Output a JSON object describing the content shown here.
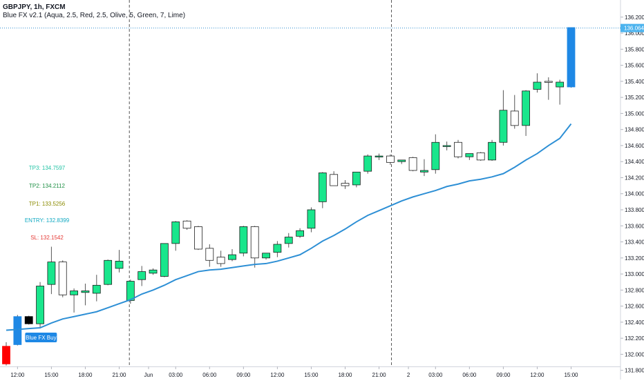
{
  "header": {
    "symbol_line": "GBPJPY, 1h, FXCM",
    "indicator_line": "Blue FX v2.1 (Aqua, 2.5, Red, 2.5, Olive, 5, Green, 7, Lime)"
  },
  "labels": {
    "tp3": "TP3: 134.7597",
    "tp2": "TP2: 134.2112",
    "tp1": "TP1: 133.5256",
    "entry": "ENTRY: 132.8399",
    "sl": "SL: 132.1542",
    "buy_signal": "Blue FX Buy"
  },
  "colors": {
    "bull": "#19e68c",
    "bear": "#ffffff",
    "outline": "#1e1e1e",
    "wick": "#555555",
    "signal_blue": "#1e88e5",
    "signal_red": "#ff0000",
    "signal_black": "#000000",
    "tp3": "#22c3a5",
    "tp2": "#1e8f44",
    "tp1": "#8a8a00",
    "entry": "#11a9c2",
    "sl": "#e53935",
    "price_line": "#2e8fcf",
    "price_tag": "#4cb3ee"
  },
  "chart_data": {
    "type": "candlestick",
    "symbol": "GBPJPY",
    "timeframe": "1h",
    "source": "FXCM",
    "ylim": [
      131.84,
      136.31
    ],
    "yticks": [
      "131.800",
      "132.000",
      "132.200",
      "132.400",
      "132.600",
      "132.800",
      "133.000",
      "133.200",
      "133.400",
      "133.600",
      "133.800",
      "134.000",
      "134.200",
      "134.400",
      "134.600",
      "134.800",
      "135.000",
      "135.200",
      "135.400",
      "135.600",
      "135.800",
      "136.000",
      "136.200"
    ],
    "xticks": [
      {
        "label": "12:00",
        "index": 1
      },
      {
        "label": "15:00",
        "index": 4
      },
      {
        "label": "18:00",
        "index": 7
      },
      {
        "label": "21:00",
        "index": 10
      },
      {
        "label": "Jun",
        "index": 12.6
      },
      {
        "label": "03:00",
        "index": 15
      },
      {
        "label": "06:00",
        "index": 18
      },
      {
        "label": "09:00",
        "index": 21
      },
      {
        "label": "12:00",
        "index": 24
      },
      {
        "label": "15:00",
        "index": 27
      },
      {
        "label": "18:00",
        "index": 30
      },
      {
        "label": "21:00",
        "index": 33
      },
      {
        "label": "2",
        "index": 35.6
      },
      {
        "label": "03:00",
        "index": 38
      },
      {
        "label": "06:00",
        "index": 41
      },
      {
        "label": "09:00",
        "index": 44
      },
      {
        "label": "12:00",
        "index": 47
      },
      {
        "label": "15:00",
        "index": 50
      }
    ],
    "session_breaks": [
      10.9,
      34.1
    ],
    "candles": [
      {
        "o": 132.1,
        "h": 132.15,
        "l": 131.86,
        "c": 131.88,
        "color": "red"
      },
      {
        "o": 132.12,
        "h": 132.49,
        "l": 132.11,
        "c": 132.47,
        "color": "blue"
      },
      {
        "o": 132.47,
        "h": 132.48,
        "l": 132.37,
        "c": 132.38,
        "color": "black"
      },
      {
        "o": 132.38,
        "h": 132.9,
        "l": 132.33,
        "c": 132.85
      },
      {
        "o": 132.87,
        "h": 133.34,
        "l": 132.75,
        "c": 133.15
      },
      {
        "o": 133.15,
        "h": 133.17,
        "l": 132.71,
        "c": 132.74
      },
      {
        "o": 132.74,
        "h": 132.82,
        "l": 132.52,
        "c": 132.79
      },
      {
        "o": 132.77,
        "h": 132.88,
        "l": 132.61,
        "c": 132.79
      },
      {
        "o": 132.76,
        "h": 132.99,
        "l": 132.66,
        "c": 132.86
      },
      {
        "o": 132.87,
        "h": 133.18,
        "l": 132.86,
        "c": 133.17
      },
      {
        "o": 133.07,
        "h": 133.3,
        "l": 133.02,
        "c": 133.16
      },
      {
        "o": 132.67,
        "h": 132.93,
        "l": 132.63,
        "c": 132.91
      },
      {
        "o": 132.93,
        "h": 133.1,
        "l": 132.85,
        "c": 133.03
      },
      {
        "o": 133.01,
        "h": 133.07,
        "l": 132.99,
        "c": 133.05
      },
      {
        "o": 132.97,
        "h": 133.38,
        "l": 132.96,
        "c": 133.38
      },
      {
        "o": 133.38,
        "h": 133.66,
        "l": 133.29,
        "c": 133.65
      },
      {
        "o": 133.66,
        "h": 133.67,
        "l": 133.55,
        "c": 133.57
      },
      {
        "o": 133.59,
        "h": 133.6,
        "l": 133.3,
        "c": 133.31
      },
      {
        "o": 133.32,
        "h": 133.37,
        "l": 133.09,
        "c": 133.17
      },
      {
        "o": 133.21,
        "h": 133.29,
        "l": 133.09,
        "c": 133.13
      },
      {
        "o": 133.18,
        "h": 133.31,
        "l": 133.16,
        "c": 133.24
      },
      {
        "o": 133.26,
        "h": 133.6,
        "l": 133.22,
        "c": 133.59
      },
      {
        "o": 133.59,
        "h": 133.6,
        "l": 133.08,
        "c": 133.2
      },
      {
        "o": 133.2,
        "h": 133.25,
        "l": 133.18,
        "c": 133.26
      },
      {
        "o": 133.27,
        "h": 133.41,
        "l": 133.21,
        "c": 133.37
      },
      {
        "o": 133.38,
        "h": 133.51,
        "l": 133.33,
        "c": 133.46
      },
      {
        "o": 133.47,
        "h": 133.57,
        "l": 133.45,
        "c": 133.54
      },
      {
        "o": 133.57,
        "h": 133.83,
        "l": 133.52,
        "c": 133.8
      },
      {
        "o": 133.9,
        "h": 134.27,
        "l": 133.82,
        "c": 134.26
      },
      {
        "o": 134.24,
        "h": 134.28,
        "l": 134.11,
        "c": 134.1
      },
      {
        "o": 134.13,
        "h": 134.17,
        "l": 134.06,
        "c": 134.1
      },
      {
        "o": 134.11,
        "h": 134.27,
        "l": 134.08,
        "c": 134.27
      },
      {
        "o": 134.28,
        "h": 134.49,
        "l": 134.25,
        "c": 134.47
      },
      {
        "o": 134.46,
        "h": 134.5,
        "l": 134.42,
        "c": 134.47
      },
      {
        "o": 134.47,
        "h": 134.49,
        "l": 134.36,
        "c": 134.39
      },
      {
        "o": 134.4,
        "h": 134.41,
        "l": 134.37,
        "c": 134.42
      },
      {
        "o": 134.45,
        "h": 134.46,
        "l": 134.28,
        "c": 134.29
      },
      {
        "o": 134.27,
        "h": 134.43,
        "l": 134.22,
        "c": 134.29
      },
      {
        "o": 134.3,
        "h": 134.74,
        "l": 134.25,
        "c": 134.64
      },
      {
        "o": 134.6,
        "h": 134.65,
        "l": 134.54,
        "c": 134.6
      },
      {
        "o": 134.64,
        "h": 134.67,
        "l": 134.44,
        "c": 134.46
      },
      {
        "o": 134.46,
        "h": 134.5,
        "l": 134.42,
        "c": 134.5
      },
      {
        "o": 134.51,
        "h": 134.52,
        "l": 134.41,
        "c": 134.42
      },
      {
        "o": 134.42,
        "h": 134.67,
        "l": 134.41,
        "c": 134.64
      },
      {
        "o": 134.64,
        "h": 135.29,
        "l": 134.6,
        "c": 135.04
      },
      {
        "o": 135.03,
        "h": 135.23,
        "l": 134.81,
        "c": 134.85
      },
      {
        "o": 134.85,
        "h": 135.29,
        "l": 134.72,
        "c": 135.28
      },
      {
        "o": 135.3,
        "h": 135.5,
        "l": 135.26,
        "c": 135.39
      },
      {
        "o": 135.4,
        "h": 135.45,
        "l": 135.17,
        "c": 135.39
      },
      {
        "o": 135.33,
        "h": 135.42,
        "l": 135.11,
        "c": 135.39
      },
      {
        "o": 135.33,
        "h": 136.07,
        "l": 135.32,
        "c": 136.07,
        "color": "blue"
      }
    ],
    "ma_line": {
      "color": "#2d8fd5",
      "values": [
        132.3,
        132.31,
        132.32,
        132.33,
        132.39,
        132.44,
        132.47,
        132.5,
        132.53,
        132.58,
        132.63,
        132.68,
        132.75,
        132.8,
        132.86,
        132.93,
        132.98,
        133.03,
        133.05,
        133.06,
        133.08,
        133.1,
        133.12,
        133.13,
        133.16,
        133.2,
        133.24,
        133.32,
        133.41,
        133.48,
        133.56,
        133.65,
        133.73,
        133.79,
        133.85,
        133.91,
        133.96,
        134.0,
        134.04,
        134.09,
        134.12,
        134.16,
        134.18,
        134.21,
        134.25,
        134.33,
        134.42,
        134.5,
        134.6,
        134.69,
        134.87
      ]
    },
    "last_price": {
      "value": 136.064,
      "label": "136.064"
    }
  }
}
